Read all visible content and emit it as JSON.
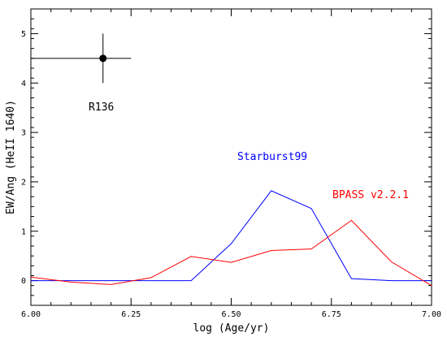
{
  "chart_data": {
    "type": "line",
    "title": "",
    "xlabel": "log (Age/yr)",
    "ylabel": "EW/Ang (HeII 1640)",
    "xlim": [
      6.0,
      7.0
    ],
    "ylim": [
      -0.5,
      5.5
    ],
    "x_ticks": [
      "6.00",
      "6.25",
      "6.50",
      "6.75",
      "7.00"
    ],
    "x_tick_values": [
      6.0,
      6.25,
      6.5,
      6.75,
      7.0
    ],
    "y_ticks": [
      "0",
      "1",
      "2",
      "3",
      "4",
      "5"
    ],
    "y_tick_values": [
      0,
      1,
      2,
      3,
      4,
      5
    ],
    "grid": false,
    "series": [
      {
        "name": "Starburst99",
        "color": "#0000ff",
        "x": [
          6.0,
          6.1,
          6.2,
          6.3,
          6.4,
          6.5,
          6.6,
          6.7,
          6.8,
          6.9,
          7.0
        ],
        "y": [
          0.0,
          0.0,
          0.0,
          0.0,
          0.0,
          0.75,
          1.82,
          1.46,
          0.04,
          0.0,
          0.0
        ]
      },
      {
        "name": "BPASS v2.2.1",
        "color": "#ff0000",
        "x": [
          6.0,
          6.1,
          6.2,
          6.3,
          6.4,
          6.5,
          6.6,
          6.7,
          6.8,
          6.9,
          7.0
        ],
        "y": [
          0.07,
          -0.03,
          -0.08,
          0.06,
          0.49,
          0.37,
          0.61,
          0.64,
          1.22,
          0.38,
          -0.1
        ]
      }
    ],
    "points": [
      {
        "name": "R136",
        "color": "#000000",
        "x": 6.18,
        "y": 4.5,
        "xerr": [
          0.18,
          0.07
        ],
        "yerr": [
          0.5,
          0.5
        ]
      }
    ],
    "annotations": [
      {
        "text": "R136",
        "color": "#000000"
      },
      {
        "text": "Starburst99",
        "color": "#0000ff"
      },
      {
        "text": "BPASS v2.2.1",
        "color": "#ff0000"
      }
    ]
  }
}
